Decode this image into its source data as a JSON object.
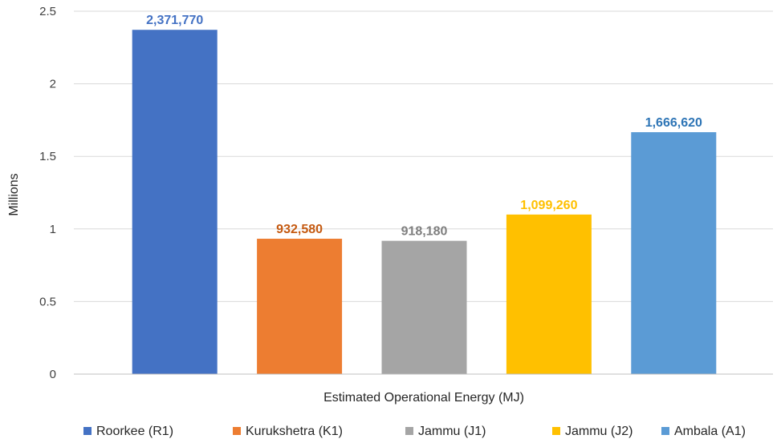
{
  "chart_data": {
    "type": "bar",
    "title": "",
    "xlabel": "Estimated Operational Energy (MJ)",
    "ylabel": "Millions",
    "ylim": [
      0,
      2.5
    ],
    "yticks": [
      0,
      0.5,
      1,
      1.5,
      2,
      2.5
    ],
    "ytick_labels": [
      "0",
      "0.5",
      "1",
      "1.5",
      "2",
      "2.5"
    ],
    "grid": true,
    "legend_position": "bottom",
    "categories": [
      "Roorkee (R1)",
      "Kurukshetra (K1)",
      "Jammu (J1)",
      "Jammu (J2)",
      "Ambala (A1)"
    ],
    "values": [
      2371770,
      932580,
      918180,
      1099260,
      1666620
    ],
    "value_labels": [
      "2,371,770",
      "932,580",
      "918,180",
      "1,099,260",
      "1,666,620"
    ],
    "colors": [
      "#4472c4",
      "#ed7d31",
      "#a5a5a5",
      "#ffc000",
      "#5b9bd5"
    ],
    "label_colors": [
      "#4472c4",
      "#c55a11",
      "#7f7f7f",
      "#ffc000",
      "#2e75b6"
    ]
  }
}
